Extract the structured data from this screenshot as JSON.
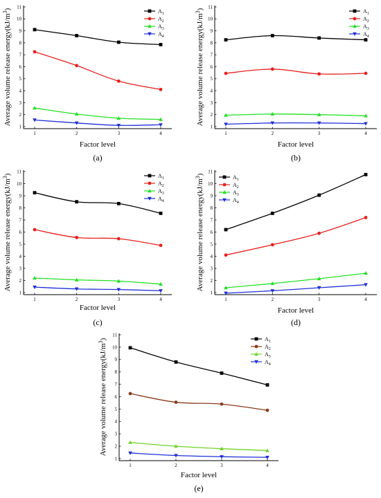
{
  "chart_data": [
    {
      "type": "line",
      "panel": "(a)",
      "xlabel": "Factor level",
      "ylabel": "Average volume release energy(kJ/m3)",
      "ylabel_main": "Average volume release energy(kJ/m",
      "ylabel_sup": "3",
      "ylabel_end": ")",
      "x": [
        1,
        2,
        3,
        4
      ],
      "xlim": [
        1,
        4
      ],
      "ylim": [
        1,
        11
      ],
      "yticks": [
        1,
        2,
        3,
        4,
        5,
        6,
        7,
        8,
        9,
        10,
        11
      ],
      "legend_position": "top-right",
      "series": [
        {
          "name": "A1",
          "label": "A",
          "sub": "1",
          "color": "#000000",
          "marker": "square",
          "values": [
            9.1,
            8.6,
            8.05,
            7.85
          ]
        },
        {
          "name": "A2",
          "label": "A",
          "sub": "2",
          "color": "#e8201c",
          "marker": "circle",
          "values": [
            7.25,
            6.1,
            4.8,
            4.1
          ]
        },
        {
          "name": "A3",
          "label": "A",
          "sub": "3",
          "color": "#22e022",
          "marker": "triangle-up",
          "values": [
            2.55,
            2.05,
            1.7,
            1.6
          ]
        },
        {
          "name": "A4",
          "label": "A",
          "sub": "4",
          "color": "#1f2fd8",
          "marker": "triangle-down",
          "values": [
            1.55,
            1.3,
            1.1,
            1.15
          ]
        }
      ]
    },
    {
      "type": "line",
      "panel": "(b)",
      "xlabel": "Factor level",
      "ylabel": "Average volume release energy(kJ/m3)",
      "ylabel_main": "Average volume release energy(kJ/m",
      "ylabel_sup": "3",
      "ylabel_end": ")",
      "x": [
        1,
        2,
        3,
        4
      ],
      "xlim": [
        1,
        4
      ],
      "ylim": [
        1,
        11
      ],
      "yticks": [
        1,
        2,
        3,
        4,
        5,
        6,
        7,
        8,
        9,
        10,
        11
      ],
      "legend_position": "top-right",
      "series": [
        {
          "name": "A1",
          "label": "A",
          "sub": "1",
          "color": "#000000",
          "marker": "square",
          "values": [
            8.25,
            8.6,
            8.4,
            8.25
          ]
        },
        {
          "name": "A2",
          "label": "A",
          "sub": "2",
          "color": "#e8201c",
          "marker": "circle",
          "values": [
            5.45,
            5.8,
            5.4,
            5.45
          ]
        },
        {
          "name": "A3",
          "label": "A",
          "sub": "3",
          "color": "#22e022",
          "marker": "triangle-up",
          "values": [
            1.95,
            2.05,
            2.0,
            1.9
          ]
        },
        {
          "name": "A4",
          "label": "A",
          "sub": "4",
          "color": "#1f2fd8",
          "marker": "triangle-down",
          "values": [
            1.2,
            1.3,
            1.3,
            1.25
          ]
        }
      ]
    },
    {
      "type": "line",
      "panel": "(c)",
      "xlabel": "Factor level",
      "ylabel": "Average volume release energy(kJ/m3)",
      "ylabel_main": "Average volume release energy(kJ/m",
      "ylabel_sup": "3",
      "ylabel_end": ")",
      "x": [
        1,
        2,
        3,
        4
      ],
      "xlim": [
        1,
        4
      ],
      "ylim": [
        1,
        11
      ],
      "yticks": [
        1,
        2,
        3,
        4,
        5,
        6,
        7,
        8,
        9,
        10,
        11
      ],
      "legend_position": "top-right",
      "series": [
        {
          "name": "A1",
          "label": "A",
          "sub": "1",
          "color": "#000000",
          "marker": "square",
          "values": [
            9.25,
            8.5,
            8.35,
            7.55
          ]
        },
        {
          "name": "A2",
          "label": "A",
          "sub": "2",
          "color": "#e8201c",
          "marker": "circle",
          "values": [
            6.2,
            5.55,
            5.45,
            4.9
          ]
        },
        {
          "name": "A3",
          "label": "A",
          "sub": "3",
          "color": "#22e022",
          "marker": "triangle-up",
          "values": [
            2.2,
            2.05,
            1.95,
            1.7
          ]
        },
        {
          "name": "A4",
          "label": "A",
          "sub": "4",
          "color": "#1f2fd8",
          "marker": "triangle-down",
          "values": [
            1.45,
            1.3,
            1.25,
            1.15
          ]
        }
      ]
    },
    {
      "type": "line",
      "panel": "(d)",
      "xlabel": "Factor level",
      "ylabel": "Average volume release energy(kJ/m3)",
      "ylabel_main": "Average volume release energy(kJ/m",
      "ylabel_sup": "3",
      "ylabel_end": ")",
      "x": [
        1,
        2,
        3,
        4
      ],
      "xlim": [
        1,
        4
      ],
      "ylim": [
        1,
        11
      ],
      "yticks": [
        1,
        2,
        3,
        4,
        5,
        6,
        7,
        8,
        9,
        10,
        11
      ],
      "legend_position": "top-left",
      "series": [
        {
          "name": "A1",
          "label": "A",
          "sub": "1",
          "color": "#000000",
          "marker": "square",
          "values": [
            6.2,
            7.55,
            9.05,
            10.75
          ]
        },
        {
          "name": "A2",
          "label": "A",
          "sub": "2",
          "color": "#e8201c",
          "marker": "circle",
          "values": [
            4.1,
            4.95,
            5.9,
            7.2
          ]
        },
        {
          "name": "A3",
          "label": "A",
          "sub": "3",
          "color": "#22e022",
          "marker": "triangle-up",
          "values": [
            1.4,
            1.75,
            2.15,
            2.6
          ]
        },
        {
          "name": "A4",
          "label": "A",
          "sub": "4",
          "color": "#1f2fd8",
          "marker": "triangle-down",
          "values": [
            0.95,
            1.15,
            1.4,
            1.65
          ]
        }
      ]
    },
    {
      "type": "line",
      "panel": "(e)",
      "xlabel": "Factor level",
      "ylabel": "Average volume release energy(kJ/m3)",
      "ylabel_main": "Average volume release energy(kJ/m",
      "ylabel_sup": "3",
      "ylabel_end": ")",
      "x": [
        1,
        2,
        3,
        4
      ],
      "xlim": [
        1,
        4
      ],
      "ylim": [
        1,
        11
      ],
      "yticks": [
        1,
        2,
        3,
        4,
        5,
        6,
        7,
        8,
        9,
        10,
        11
      ],
      "legend_position": "top-right",
      "series": [
        {
          "name": "A1",
          "label": "A",
          "sub": "1",
          "color": "#000000",
          "marker": "square",
          "values": [
            9.95,
            8.8,
            7.9,
            6.95
          ]
        },
        {
          "name": "A2",
          "label": "A",
          "sub": "2",
          "color": "#8b3a1a",
          "marker": "circle",
          "values": [
            6.25,
            5.55,
            5.4,
            4.9
          ]
        },
        {
          "name": "A3",
          "label": "A",
          "sub": "3",
          "color": "#6fd32a",
          "marker": "triangle-up",
          "values": [
            2.3,
            2.0,
            1.8,
            1.65
          ]
        },
        {
          "name": "A4",
          "label": "A",
          "sub": "4",
          "color": "#1f2fd8",
          "marker": "triangle-down",
          "values": [
            1.45,
            1.25,
            1.15,
            1.1
          ]
        }
      ]
    }
  ]
}
